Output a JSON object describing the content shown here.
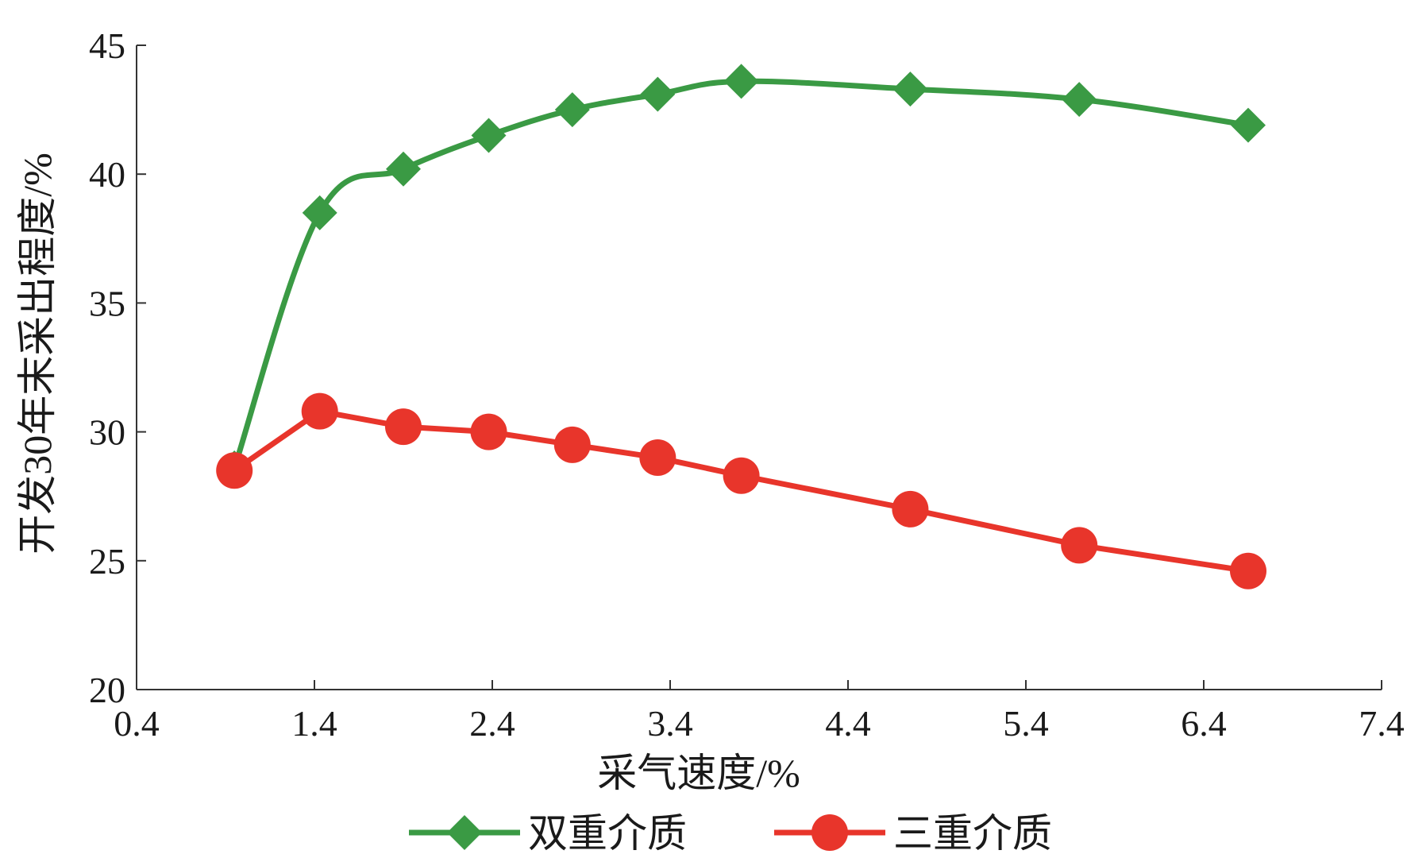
{
  "chart_data": {
    "type": "line",
    "xlabel": "采气速度/%",
    "ylabel": "开发30年末采出程度/%",
    "xlim": [
      0.4,
      7.4
    ],
    "ylim": [
      20,
      45
    ],
    "xticks": [
      "0.4",
      "1.4",
      "2.4",
      "3.4",
      "4.4",
      "5.4",
      "6.4",
      "7.4"
    ],
    "yticks": [
      "20",
      "25",
      "30",
      "35",
      "40",
      "45"
    ],
    "grid": false,
    "legend": "bottom",
    "series": [
      {
        "name": "双重介质",
        "color": "#3a9a44",
        "marker": "diamond",
        "points": [
          {
            "x": 0.95,
            "y": 28.6
          },
          {
            "x": 1.43,
            "y": 38.5
          },
          {
            "x": 1.9,
            "y": 40.2
          },
          {
            "x": 2.38,
            "y": 41.5
          },
          {
            "x": 2.85,
            "y": 42.5
          },
          {
            "x": 3.33,
            "y": 43.1
          },
          {
            "x": 3.8,
            "y": 43.6
          },
          {
            "x": 4.75,
            "y": 43.3
          },
          {
            "x": 5.7,
            "y": 42.9
          },
          {
            "x": 6.65,
            "y": 41.9
          }
        ]
      },
      {
        "name": "三重介质",
        "color": "#e8352b",
        "marker": "circle",
        "points": [
          {
            "x": 0.95,
            "y": 28.5
          },
          {
            "x": 1.43,
            "y": 30.8
          },
          {
            "x": 1.9,
            "y": 30.2
          },
          {
            "x": 2.38,
            "y": 30.0
          },
          {
            "x": 2.85,
            "y": 29.5
          },
          {
            "x": 3.33,
            "y": 29.0
          },
          {
            "x": 3.8,
            "y": 28.3
          },
          {
            "x": 4.75,
            "y": 27.0
          },
          {
            "x": 5.7,
            "y": 25.6
          },
          {
            "x": 6.65,
            "y": 24.6
          }
        ]
      }
    ]
  }
}
